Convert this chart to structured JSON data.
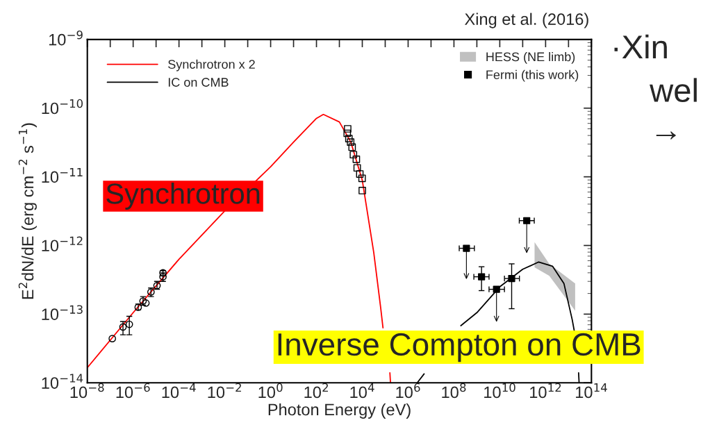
{
  "chart_data": {
    "type": "line",
    "title": null,
    "xlabel": "Photon Energy (eV)",
    "ylabel": "E$^{2}$dN/dE (erg cm$^{−2}$ s$^{−1}$)",
    "log": "xy",
    "xlim": [
      1e-08,
      100000000000000.0
    ],
    "ylim": [
      1e-14,
      1e-09
    ],
    "xticks": [
      {
        "value": 1e-08,
        "label": "10$^{−8}$"
      },
      {
        "value": 1e-07,
        "label": null
      },
      {
        "value": 1e-06,
        "label": "10$^{−6}$"
      },
      {
        "value": 1e-05,
        "label": null
      },
      {
        "value": 0.0001,
        "label": "10$^{−4}$"
      },
      {
        "value": 0.001,
        "label": null
      },
      {
        "value": 0.01,
        "label": "10$^{−2}$"
      },
      {
        "value": 0.1,
        "label": null
      },
      {
        "value": 1,
        "label": "10$^{0}$"
      },
      {
        "value": 10,
        "label": null
      },
      {
        "value": 100,
        "label": "10$^{2}$"
      },
      {
        "value": 1000.0,
        "label": null
      },
      {
        "value": 10000.0,
        "label": "10$^{4}$"
      },
      {
        "value": 100000.0,
        "label": null
      },
      {
        "value": 1000000.0,
        "label": "10$^{6}$"
      },
      {
        "value": 10000000.0,
        "label": null
      },
      {
        "value": 100000000.0,
        "label": "10$^{8}$"
      },
      {
        "value": 1000000000.0,
        "label": null
      },
      {
        "value": 10000000000.0,
        "label": "10$^{10}$"
      },
      {
        "value": 100000000000.0,
        "label": null
      },
      {
        "value": 1000000000000.0,
        "label": "10$^{12}$"
      },
      {
        "value": 10000000000000.0,
        "label": null
      },
      {
        "value": 100000000000000.0,
        "label": "10$^{14}$"
      }
    ],
    "yticks": [
      {
        "value": 1e-14,
        "label": "10$^{−14}$"
      },
      {
        "value": 1e-13,
        "label": "10$^{−13}$"
      },
      {
        "value": 1e-12,
        "label": "10$^{−12}$"
      },
      {
        "value": 1e-11,
        "label": "10$^{−11}$"
      },
      {
        "value": 1e-10,
        "label": "10$^{−10}$"
      },
      {
        "value": 1e-09,
        "label": "10$^{−9}$"
      }
    ],
    "grid": false,
    "legend": "top",
    "line_style": "solid",
    "series": [
      {
        "name": "Synchrotron x 2",
        "color": "#ff0000",
        "x": [
          1e-08,
          1e-06,
          0.0001,
          0.01,
          1,
          10,
          100,
          200,
          1000,
          3162,
          10000.0,
          31623,
          63000,
          80000,
          100000.0,
          160000.0,
          170000.0
        ],
        "values": [
          1.66e-14,
          1.05e-13,
          6.3e-13,
          3.2e-12,
          1.4e-11,
          3.2e-11,
          7.1e-11,
          8.1e-11,
          6.3e-11,
          3.2e-11,
          8.9e-12,
          7.9e-13,
          1.26e-13,
          6.3e-14,
          null,
          1.4e-14,
          1e-14
        ]
      },
      {
        "name": "IC on CMB",
        "color": "#000000",
        "x": [
          2500000.0,
          5000000.0,
          10000000.0,
          200000000.0,
          1000000000.0,
          10000000000.0,
          100000000000.0,
          500000000000.0,
          2000000000000.0,
          6300000000000.0,
          14500000000000.0,
          18000000000000.0,
          22000000000000.0,
          27500000000000.0,
          29000000000000.0
        ],
        "values": [
          1e-14,
          1.35e-14,
          null,
          6.8e-14,
          1.05e-13,
          2.5e-13,
          4.5e-13,
          5.75e-13,
          5e-13,
          2.8e-13,
          8.3e-14,
          5.6e-14,
          null,
          1.4e-14,
          1e-14
        ]
      },
      {
        "type": "scatter",
        "marker": "circle",
        "color": "#000000",
        "x": [
          1.23e-07,
          3.6e-07,
          6.8e-07,
          1.66e-06,
          2.7e-06,
          3.6e-06,
          6e-06,
          1.1e-05,
          2e-05,
          2e-05
        ],
        "values": [
          4.4e-14,
          6.5e-14,
          7.1e-14,
          1.26e-13,
          1.55e-13,
          1.45e-13,
          2.1e-13,
          2.6e-13,
          4e-13,
          3.5e-13
        ],
        "errors": [
          null,
          [
            5e-14,
            7.8e-14
          ],
          [
            5e-14,
            9.3e-14
          ],
          [
            1.15e-13,
            1.4e-13
          ],
          [
            1.35e-13,
            1.8e-13
          ],
          null,
          [
            1.8e-13,
            2.4e-13
          ],
          [
            2.3e-13,
            3e-13
          ],
          [
            3.6e-13,
            4.3e-13
          ],
          [
            3e-13,
            4e-13
          ]
        ]
      },
      {
        "type": "scatter",
        "marker": "square",
        "color": "#000000",
        "x": [
          2300.0,
          2200.0,
          2600.0,
          3100.0,
          3600.0,
          4100.0,
          5500.0,
          6000.0,
          7800.0,
          9800.0,
          10000.0
        ],
        "values": [
          5e-11,
          4.3e-11,
          3.6e-11,
          3.2e-11,
          2.7e-11,
          2.1e-11,
          1.8e-11,
          1.35e-11,
          1.1e-11,
          9.5e-12,
          6.3e-12
        ]
      },
      {
        "name": "HESS (NE limb)",
        "type": "area",
        "color": "#c0c0c0",
        "x": [
          330000000000.0,
          1450000000000.0,
          19500000000000.0
        ],
        "values": [
          null,
          null,
          null
        ],
        "lower": [
          4.8e-13,
          3.6e-13,
          1.12e-13
        ],
        "upper": [
          1.12e-12,
          5.4e-13,
          2.8e-13
        ]
      },
      {
        "name": "Fermi (this work)",
        "type": "scatter",
        "marker": "square",
        "color": "#000000",
        "x": [
          350000000.0,
          1600000000.0,
          7200000000.0,
          33000000000.0,
          150000000000.0
        ],
        "values": [
          9.1e-13,
          3.5e-13,
          2.3e-13,
          3.3e-13,
          2.3e-12
        ],
        "errors": [
          [
            3.3e-13,
            9.1e-13
          ],
          [
            2.2e-13,
            4.9e-13
          ],
          [
            7.9e-14,
            2.3e-13
          ],
          [
            1.2e-13,
            5.4e-13
          ],
          [
            7.9e-13,
            2.3e-12
          ]
        ],
        "xerrors": [
          [
            170000000.0,
            780000000.0
          ],
          [
            740000000.0,
            3400000000.0
          ],
          [
            3400000000.0,
            16000000000.0
          ],
          [
            16000000000.0,
            72000000000.0
          ],
          [
            71000000000.0,
            320000000000.0
          ]
        ]
      }
    ],
    "annotations": [
      "Xing et al. (2016)",
      "Synchrotron",
      "Inverse Compton on CMB",
      "·Xin",
      "wel",
      "→"
    ]
  }
}
